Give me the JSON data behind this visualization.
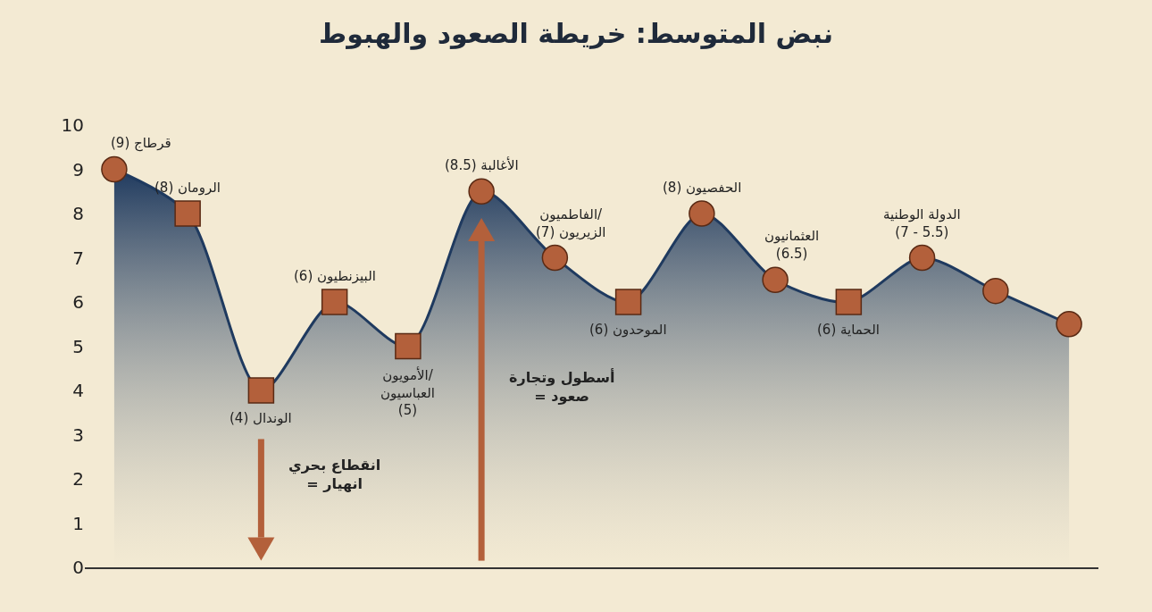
{
  "chart_data": {
    "type": "area",
    "title": "نبض المتوسط: خريطة الصعود والهبوط",
    "categories": [
      null,
      null,
      null,
      null,
      null,
      null,
      null,
      null,
      null,
      null,
      null,
      null,
      null,
      null
    ],
    "ylim": [
      0,
      10
    ],
    "yticks": [
      0,
      1,
      2,
      3,
      4,
      5,
      6,
      7,
      8,
      9,
      10
    ],
    "tick_labels": "y",
    "series": [
      {
        "color": "#1f3a5f",
        "values": [
          9,
          8,
          4,
          6,
          5,
          8.5,
          7,
          6,
          8,
          6.5,
          6,
          7,
          6.25,
          5.5
        ],
        "value_labels": [
          "قرطاج (9)",
          "الرومان (8)",
          "الوندال (4)",
          "البيزنطيون (6)",
          "الأمويون/\nالعباسيون\n(5)",
          "الأغالبة (8.5)",
          "الفاطميون/\nالزيريون (7)",
          "الموحدون (6)",
          "الحفصيون (8)",
          "العثمانيون\n(6.5)",
          "الحماية (6)",
          "الدولة الوطنية\n(7 - 5.5)",
          null,
          null
        ]
      },
      {
        "type": "scatter",
        "marker": "circle",
        "color": "#b3603b",
        "values": [
          9,
          null,
          null,
          null,
          null,
          8.5,
          7,
          null,
          8,
          6.5,
          null,
          7,
          6.25,
          5.5
        ]
      },
      {
        "type": "scatter",
        "marker": "square",
        "color": "#b3603b",
        "values": [
          null,
          8,
          4,
          6,
          5,
          null,
          null,
          6,
          null,
          null,
          6,
          null,
          null,
          null
        ]
      }
    ],
    "annotations": [
      "انقطاع بحري\n= انهيار",
      "أسطول وتجارة\n= صعود"
    ]
  }
}
